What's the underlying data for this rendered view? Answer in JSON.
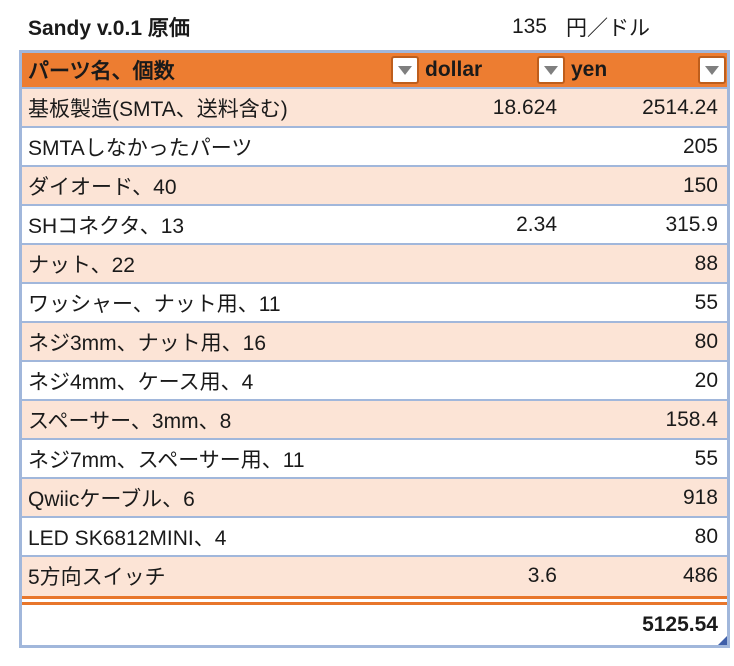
{
  "title": {
    "label": "Sandy v.0.1 原価",
    "rate_value": "135",
    "rate_unit": "円／ドル"
  },
  "table": {
    "headers": [
      {
        "label": "パーツ名、個数"
      },
      {
        "label": "dollar"
      },
      {
        "label": "yen"
      }
    ],
    "rows": [
      {
        "name": "基板製造(SMTA、送料含む)",
        "dollar": "18.624",
        "yen": "2514.24"
      },
      {
        "name": "SMTAしなかったパーツ",
        "dollar": "",
        "yen": "205"
      },
      {
        "name": "ダイオード、40",
        "dollar": "",
        "yen": "150"
      },
      {
        "name": "SHコネクタ、13",
        "dollar": "2.34",
        "yen": "315.9"
      },
      {
        "name": "ナット、22",
        "dollar": "",
        "yen": "88"
      },
      {
        "name": "ワッシャー、ナット用、11",
        "dollar": "",
        "yen": "55"
      },
      {
        "name": "ネジ3mm、ナット用、16",
        "dollar": "",
        "yen": "80"
      },
      {
        "name": "ネジ4mm、ケース用、4",
        "dollar": "",
        "yen": "20"
      },
      {
        "name": "スペーサー、3mm、8",
        "dollar": "",
        "yen": "158.4"
      },
      {
        "name": "ネジ7mm、スペーサー用、11",
        "dollar": "",
        "yen": "55"
      },
      {
        "name": "Qwiicケーブル、6",
        "dollar": "",
        "yen": "918"
      },
      {
        "name": "LED SK6812MINI、4",
        "dollar": "",
        "yen": "80"
      },
      {
        "name": "5方向スイッチ",
        "dollar": "3.6",
        "yen": "486"
      }
    ],
    "total_yen": "5125.54"
  },
  "colors": {
    "header_bg": "#ED7D31",
    "band": "#FCE4D6",
    "border": "#A1B7DB",
    "divider": "#E8762B",
    "handle": "#3F5FA8",
    "btn_border": "#BE5E1C",
    "tri": "#7F7F7F"
  }
}
